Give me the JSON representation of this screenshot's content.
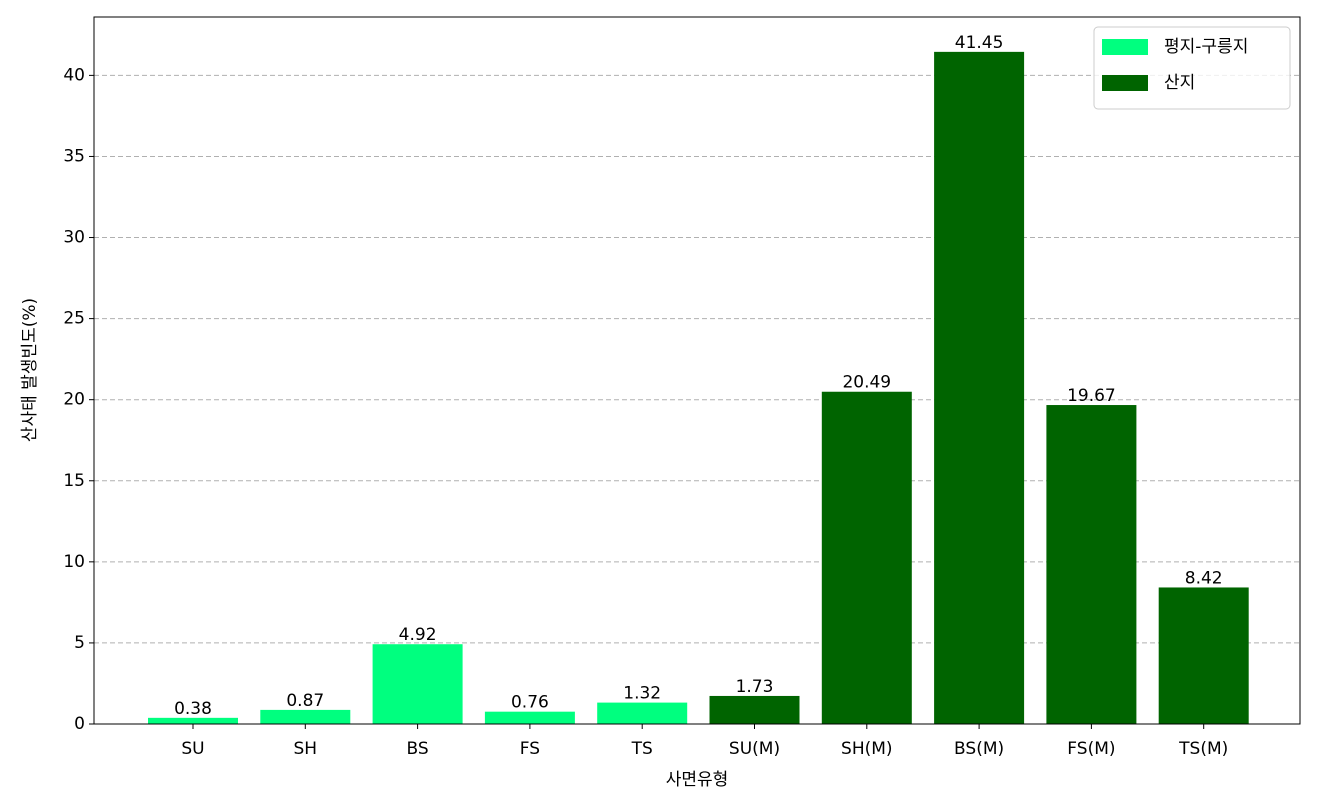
{
  "chart_data": {
    "type": "bar",
    "x_label": "사면유형",
    "y_label": "산사태 발생빈도(%)",
    "categories": [
      "SU",
      "SH",
      "BS",
      "FS",
      "TS",
      "SU(M)",
      "SH(M)",
      "BS(M)",
      "FS(M)",
      "TS(M)"
    ],
    "series": [
      {
        "name": "평지-구릉지",
        "color": "#00ff7f",
        "values": [
          0.38,
          0.87,
          4.92,
          0.76,
          1.32,
          null,
          null,
          null,
          null,
          null
        ]
      },
      {
        "name": "산지",
        "color": "#006400",
        "values": [
          null,
          null,
          null,
          null,
          null,
          1.73,
          20.49,
          41.45,
          19.67,
          8.42
        ]
      }
    ],
    "ylim": [
      0,
      43.6
    ],
    "yticks": [
      0,
      5,
      10,
      15,
      20,
      25,
      30,
      35,
      40
    ],
    "grid": true,
    "legend": "upper-right"
  }
}
